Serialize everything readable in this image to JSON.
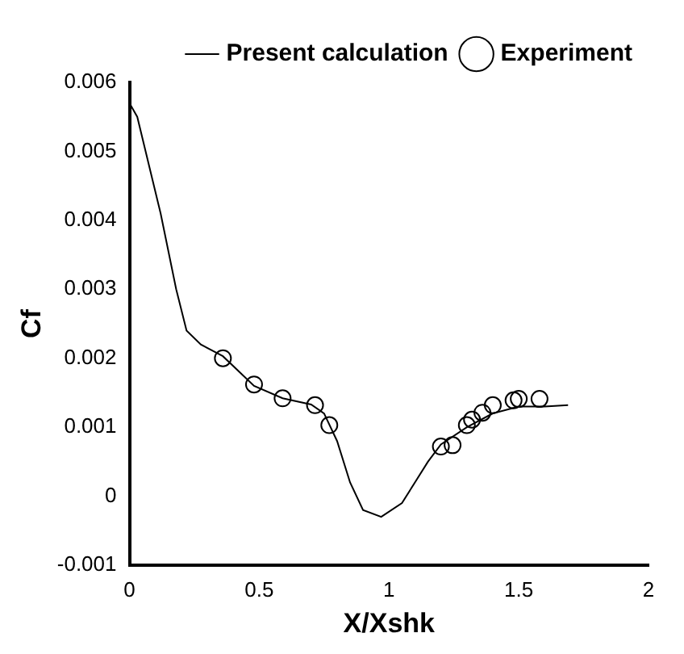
{
  "chart_data": {
    "type": "line",
    "xlabel": "X/Xshk",
    "ylabel": "Cf",
    "xlim": [
      0,
      2
    ],
    "xticks": [
      0,
      0.5,
      1,
      1.5,
      2
    ],
    "ylim": [
      -0.001,
      0.006
    ],
    "yticks": [
      -0.001,
      0,
      0.001,
      0.002,
      0.003,
      0.004,
      0.005,
      0.006
    ],
    "grid": false,
    "legend": "top right",
    "series": [
      {
        "name": "Present calculation",
        "color": "#000000",
        "marker": "none",
        "x": [
          0,
          0.03,
          0.12,
          0.18,
          0.22,
          0.275,
          0.36,
          0.48,
          0.59,
          0.7,
          0.75,
          0.8,
          0.85,
          0.9,
          0.97,
          1.05,
          1.1,
          1.15,
          1.2,
          1.3,
          1.4,
          1.5,
          1.6,
          1.69
        ],
        "values": [
          0.0057,
          0.0055,
          0.0041,
          0.003,
          0.0024,
          0.0022,
          0.00203,
          0.0016,
          0.00142,
          0.00133,
          0.0012,
          0.0008,
          0.0002,
          -0.0002,
          -0.0003,
          -0.0001,
          0.0002,
          0.0005,
          0.00075,
          0.001,
          0.0012,
          0.0013,
          0.0013,
          0.00132
        ]
      },
      {
        "name": "Experiment",
        "type": "scatter",
        "color": "#000000",
        "marker": "circle",
        "x": [
          0.36,
          0.48,
          0.59,
          0.715,
          0.77,
          1.2,
          1.245,
          1.3,
          1.32,
          1.36,
          1.4,
          1.48,
          1.5,
          1.58
        ],
        "values": [
          0.002,
          0.00162,
          0.00142,
          0.00132,
          0.00103,
          0.00072,
          0.00074,
          0.00103,
          0.00111,
          0.00121,
          0.00132,
          0.00139,
          0.00141,
          0.00141
        ]
      }
    ]
  }
}
